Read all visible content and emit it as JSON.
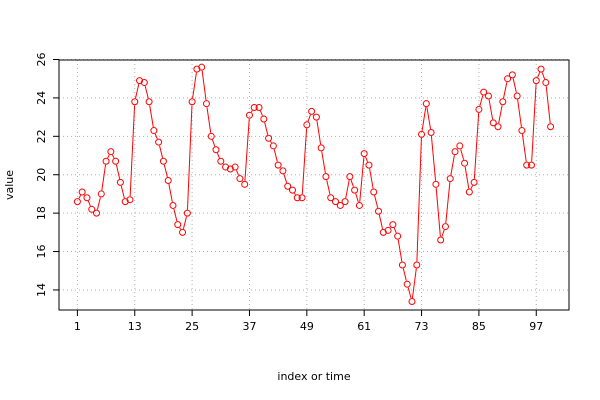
{
  "chart_data": {
    "type": "line",
    "title": "",
    "xlabel": "index or time",
    "ylabel": "value",
    "xlim": [
      1,
      100
    ],
    "ylim": [
      13.3,
      26.0
    ],
    "grid": true,
    "legend": "none",
    "x_ticks": [
      1,
      13,
      25,
      37,
      49,
      61,
      73,
      85,
      97
    ],
    "y_ticks": [
      14,
      16,
      18,
      20,
      22,
      24,
      26
    ],
    "x_tick_labels": [
      "1",
      "13",
      "25",
      "37",
      "49",
      "61",
      "73",
      "85",
      "97"
    ],
    "y_tick_labels": [
      "14",
      "16",
      "18",
      "20",
      "22",
      "24",
      "26"
    ],
    "series": [
      {
        "color": "#ff0000",
        "x": [
          1,
          2,
          3,
          4,
          5,
          6,
          7,
          8,
          9,
          10,
          11,
          12,
          13,
          14,
          15,
          16,
          17,
          18,
          19,
          20,
          21,
          22,
          23,
          24,
          25,
          26,
          27,
          28,
          29,
          30,
          31,
          32,
          33,
          34,
          35,
          36,
          37,
          38,
          39,
          40,
          41,
          42,
          43,
          44,
          45,
          46,
          47,
          48,
          49,
          50,
          51,
          52,
          53,
          54,
          55,
          56,
          57,
          58,
          59,
          60,
          61,
          62,
          63,
          64,
          65,
          66,
          67,
          68,
          69,
          70,
          71,
          72,
          73,
          74,
          75,
          76,
          77,
          78,
          79,
          80,
          81,
          82,
          83,
          84,
          85,
          86,
          87,
          88,
          89,
          90,
          91,
          92,
          93,
          94,
          95,
          96,
          97,
          98,
          99,
          100
        ],
        "values": [
          18.6,
          19.1,
          18.8,
          18.2,
          18.0,
          19.0,
          20.7,
          21.2,
          20.7,
          19.6,
          18.6,
          18.7,
          23.8,
          24.9,
          24.8,
          23.8,
          22.3,
          21.7,
          20.7,
          19.7,
          18.4,
          17.4,
          17.0,
          18.0,
          23.8,
          25.5,
          25.6,
          23.7,
          22.0,
          21.3,
          20.7,
          20.4,
          20.3,
          20.4,
          19.8,
          19.5,
          23.1,
          23.5,
          23.5,
          22.9,
          21.9,
          21.5,
          20.5,
          20.2,
          19.4,
          19.2,
          18.8,
          18.8,
          22.6,
          23.3,
          23.0,
          21.4,
          19.9,
          18.8,
          18.6,
          18.4,
          18.6,
          19.9,
          19.2,
          18.4,
          21.1,
          20.5,
          19.1,
          18.1,
          17.0,
          17.1,
          17.4,
          16.8,
          15.3,
          14.3,
          13.4,
          15.3,
          22.1,
          23.7,
          22.2,
          19.5,
          16.6,
          17.3,
          19.8,
          21.2,
          21.5,
          20.6,
          19.1,
          19.6,
          23.4,
          24.3,
          24.1,
          22.7,
          22.5,
          23.8,
          25.0,
          25.2,
          24.1,
          22.3,
          20.5,
          20.5,
          24.9,
          25.5,
          24.8,
          22.5
        ]
      }
    ]
  }
}
